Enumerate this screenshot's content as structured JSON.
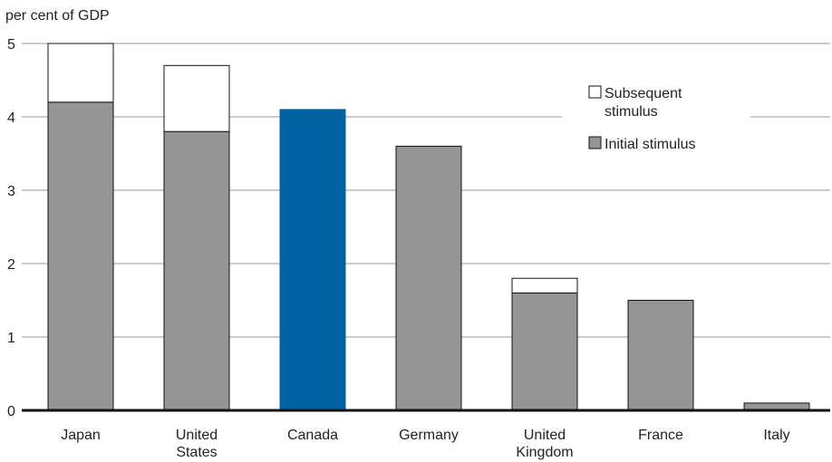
{
  "chart_data": {
    "type": "bar",
    "stacked": true,
    "ylabel": "per cent of GDP",
    "ylim": [
      0,
      5
    ],
    "yticks": [
      0,
      1,
      2,
      3,
      4,
      5
    ],
    "grid": "horizontal",
    "categories": [
      "Japan",
      "United States",
      "Canada",
      "Germany",
      "United Kingdom",
      "France",
      "Italy"
    ],
    "category_labels": [
      [
        "Japan"
      ],
      [
        "United",
        "States"
      ],
      [
        "Canada"
      ],
      [
        "Germany"
      ],
      [
        "United",
        "Kingdom"
      ],
      [
        "France"
      ],
      [
        "Italy"
      ]
    ],
    "series": [
      {
        "name": "Initial stimulus",
        "values": [
          4.2,
          3.8,
          4.1,
          3.6,
          1.6,
          1.5,
          0.1
        ],
        "color": "#959595"
      },
      {
        "name": "Subsequent stimulus",
        "values": [
          0.8,
          0.9,
          0,
          0,
          0.2,
          0,
          0
        ],
        "color": "#ffffff"
      }
    ],
    "highlight": {
      "category": "Canada",
      "color": "#0062a0"
    },
    "legend": {
      "placement": "top-right",
      "entries": [
        {
          "lines": [
            "Subsequent",
            "stimulus"
          ],
          "color": "#ffffff"
        },
        {
          "lines": [
            "Initial stimulus"
          ],
          "color": "#959595"
        }
      ]
    }
  }
}
